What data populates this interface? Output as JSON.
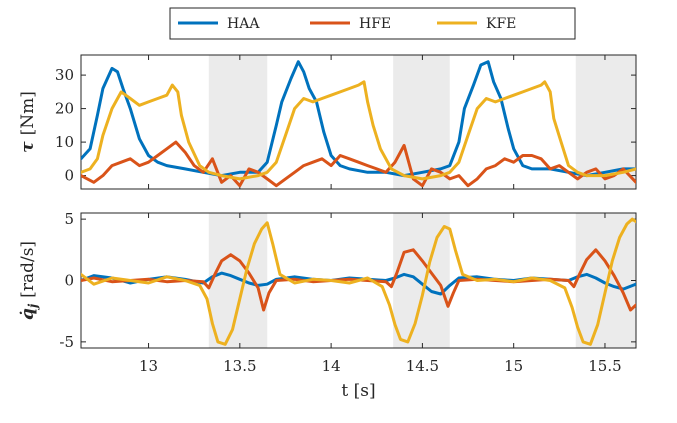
{
  "chart_data": [
    {
      "type": "line",
      "ylabel_symbol": "τ",
      "ylabel_unit": "[Nm]",
      "xlim": [
        12.63,
        15.67
      ],
      "ylim": [
        -4,
        36
      ],
      "yticks": [
        0,
        10,
        20,
        30
      ],
      "shaded_intervals": [
        [
          13.33,
          13.65
        ],
        [
          14.34,
          14.65
        ],
        [
          15.34,
          15.67
        ]
      ],
      "series": [
        {
          "name": "HAA",
          "color": "#0072BD",
          "x": [
            12.63,
            12.68,
            12.72,
            12.75,
            12.8,
            12.83,
            12.86,
            12.9,
            12.95,
            13.0,
            13.05,
            13.1,
            13.2,
            13.3,
            13.4,
            13.5,
            13.6,
            13.65,
            13.7,
            13.73,
            13.78,
            13.82,
            13.85,
            13.88,
            13.92,
            13.96,
            14.0,
            14.05,
            14.1,
            14.2,
            14.3,
            14.4,
            14.5,
            14.6,
            14.65,
            14.7,
            14.73,
            14.78,
            14.82,
            14.86,
            14.89,
            14.93,
            14.97,
            15.0,
            15.05,
            15.1,
            15.2,
            15.3,
            15.4,
            15.5,
            15.6,
            15.67
          ],
          "y": [
            5,
            8,
            18,
            26,
            32,
            31,
            26,
            20,
            11,
            6,
            4,
            3,
            2,
            1,
            0,
            1,
            1,
            4,
            15,
            22,
            29,
            34,
            31,
            26,
            22,
            13,
            6,
            3,
            2,
            1,
            1,
            0,
            1,
            2,
            3,
            10,
            20,
            27,
            33,
            34,
            28,
            23,
            14,
            8,
            3,
            2,
            2,
            1,
            0,
            1,
            2,
            2
          ]
        },
        {
          "name": "HFE",
          "color": "#D95319",
          "x": [
            12.63,
            12.7,
            12.75,
            12.8,
            12.85,
            12.9,
            12.95,
            13.0,
            13.05,
            13.1,
            13.15,
            13.2,
            13.25,
            13.3,
            13.35,
            13.4,
            13.45,
            13.5,
            13.55,
            13.6,
            13.65,
            13.7,
            13.75,
            13.8,
            13.85,
            13.9,
            13.95,
            14.0,
            14.05,
            14.1,
            14.15,
            14.2,
            14.25,
            14.3,
            14.35,
            14.4,
            14.45,
            14.5,
            14.55,
            14.6,
            14.65,
            14.7,
            14.75,
            14.8,
            14.85,
            14.9,
            14.95,
            15.0,
            15.05,
            15.1,
            15.15,
            15.2,
            15.25,
            15.3,
            15.35,
            15.4,
            15.45,
            15.5,
            15.55,
            15.6,
            15.67
          ],
          "y": [
            0,
            -2,
            0,
            3,
            4,
            5,
            3,
            4,
            6,
            8,
            10,
            7,
            3,
            1,
            5,
            -2,
            0,
            -3,
            2,
            1,
            -1,
            -3,
            -1,
            1,
            3,
            4,
            5,
            3,
            6,
            5,
            4,
            3,
            2,
            1,
            4,
            9,
            -1,
            -3,
            2,
            1,
            -1,
            0,
            -3,
            -1,
            2,
            3,
            5,
            4,
            6,
            6,
            5,
            2,
            3,
            1,
            -1,
            1,
            2,
            -1,
            0,
            2,
            -2
          ]
        },
        {
          "name": "KFE",
          "color": "#EDB120",
          "x": [
            12.63,
            12.68,
            12.72,
            12.75,
            12.8,
            12.85,
            12.9,
            12.95,
            13.0,
            13.05,
            13.1,
            13.13,
            13.16,
            13.18,
            13.22,
            13.28,
            13.33,
            13.4,
            13.5,
            13.6,
            13.65,
            13.7,
            13.75,
            13.8,
            13.85,
            13.9,
            13.95,
            14.0,
            14.05,
            14.1,
            14.15,
            14.18,
            14.2,
            14.23,
            14.27,
            14.33,
            14.4,
            14.5,
            14.6,
            14.65,
            14.7,
            14.75,
            14.8,
            14.85,
            14.9,
            14.95,
            15.0,
            15.05,
            15.1,
            15.15,
            15.17,
            15.2,
            15.22,
            15.26,
            15.3,
            15.35,
            15.4,
            15.5,
            15.6,
            15.67
          ],
          "y": [
            1,
            2,
            5,
            12,
            20,
            25,
            23,
            21,
            22,
            23,
            24,
            27,
            25,
            18,
            10,
            3,
            1,
            0,
            -1,
            0,
            1,
            4,
            12,
            20,
            23,
            22,
            23,
            24,
            25,
            26,
            27,
            28,
            22,
            15,
            8,
            2,
            0,
            -1,
            0,
            1,
            4,
            12,
            20,
            23,
            22,
            23,
            24,
            25,
            26,
            27,
            28,
            25,
            17,
            10,
            3,
            1,
            0,
            0,
            1,
            2
          ]
        }
      ]
    },
    {
      "type": "line",
      "ylabel_symbol": "q̇",
      "ylabel_subscript": "j",
      "ylabel_unit": "[rad/s]",
      "xlim": [
        12.63,
        15.67
      ],
      "ylim": [
        -5.5,
        5.5
      ],
      "yticks": [
        -5,
        0,
        5
      ],
      "xticks": [
        13,
        13.5,
        14,
        14.5,
        15,
        15.5
      ],
      "xlabel": "t [s]",
      "shaded_intervals": [
        [
          13.33,
          13.65
        ],
        [
          14.34,
          14.65
        ],
        [
          15.34,
          15.67
        ]
      ],
      "series": [
        {
          "name": "HAA",
          "color": "#0072BD",
          "x": [
            12.63,
            12.7,
            12.8,
            12.9,
            13.0,
            13.1,
            13.2,
            13.3,
            13.35,
            13.4,
            13.45,
            13.5,
            13.55,
            13.6,
            13.65,
            13.7,
            13.8,
            13.9,
            14.0,
            14.1,
            14.2,
            14.3,
            14.35,
            14.4,
            14.45,
            14.5,
            14.55,
            14.6,
            14.65,
            14.7,
            14.8,
            14.9,
            15.0,
            15.1,
            15.2,
            15.3,
            15.35,
            15.4,
            15.45,
            15.5,
            15.55,
            15.6,
            15.67
          ],
          "y": [
            0,
            0.4,
            0.2,
            -0.2,
            0.1,
            0.3,
            0.1,
            -0.2,
            0.3,
            0.6,
            0.4,
            0.1,
            -0.2,
            -0.4,
            -0.3,
            0.1,
            0.3,
            0.1,
            0,
            0.2,
            0.1,
            0,
            0.2,
            0.5,
            0.3,
            -0.3,
            -0.9,
            -1.1,
            -0.4,
            0.2,
            0.3,
            0.1,
            0,
            0.2,
            0.1,
            0,
            0.3,
            0.5,
            0.2,
            -0.2,
            -0.5,
            -0.7,
            -0.3
          ]
        },
        {
          "name": "HFE",
          "color": "#D95319",
          "x": [
            12.63,
            12.7,
            12.8,
            12.9,
            13.0,
            13.1,
            13.2,
            13.3,
            13.33,
            13.36,
            13.4,
            13.45,
            13.5,
            13.55,
            13.6,
            13.63,
            13.66,
            13.7,
            13.8,
            13.9,
            14.0,
            14.1,
            14.2,
            14.3,
            14.33,
            14.36,
            14.4,
            14.45,
            14.5,
            14.55,
            14.6,
            14.64,
            14.67,
            14.7,
            14.8,
            14.9,
            15.0,
            15.1,
            15.2,
            15.3,
            15.33,
            15.36,
            15.4,
            15.45,
            15.5,
            15.55,
            15.6,
            15.64,
            15.67
          ],
          "y": [
            0,
            0.2,
            -0.1,
            0,
            0.1,
            -0.1,
            0,
            -0.1,
            -0.6,
            0.4,
            1.6,
            2.1,
            1.6,
            0.6,
            -0.6,
            -2.4,
            -1.0,
            0,
            0.1,
            -0.1,
            0,
            0.1,
            0,
            -0.1,
            -0.5,
            0.6,
            2.3,
            2.5,
            1.6,
            0.6,
            -0.4,
            -2.1,
            -1.0,
            0,
            0.1,
            0,
            -0.1,
            0,
            0.1,
            0,
            -0.5,
            0.5,
            1.7,
            2.5,
            1.6,
            0.4,
            -1.0,
            -2.4,
            -2.0
          ]
        },
        {
          "name": "KFE",
          "color": "#EDB120",
          "x": [
            12.63,
            12.7,
            12.8,
            12.9,
            13.0,
            13.1,
            13.2,
            13.28,
            13.32,
            13.35,
            13.38,
            13.42,
            13.46,
            13.5,
            13.54,
            13.58,
            13.62,
            13.65,
            13.68,
            13.72,
            13.8,
            13.9,
            14.0,
            14.1,
            14.2,
            14.28,
            14.32,
            14.35,
            14.38,
            14.42,
            14.46,
            14.5,
            14.54,
            14.58,
            14.62,
            14.65,
            14.68,
            14.72,
            14.8,
            14.9,
            15.0,
            15.1,
            15.2,
            15.28,
            15.32,
            15.35,
            15.38,
            15.42,
            15.46,
            15.5,
            15.54,
            15.58,
            15.62,
            15.65,
            15.67
          ],
          "y": [
            0.5,
            -0.3,
            0.2,
            0,
            -0.2,
            0.3,
            0,
            -0.4,
            -1.5,
            -3.5,
            -5.0,
            -5.2,
            -4.0,
            -1.5,
            1.0,
            3.0,
            4.2,
            4.7,
            3.0,
            0.5,
            -0.2,
            0.1,
            0,
            -0.2,
            0.2,
            -0.5,
            -2.0,
            -3.6,
            -4.8,
            -5.0,
            -3.5,
            -1.2,
            1.5,
            3.5,
            4.4,
            4.2,
            2.5,
            0.5,
            0,
            0.1,
            -0.1,
            0.2,
            0,
            -0.6,
            -2.2,
            -3.8,
            -5.0,
            -5.2,
            -3.6,
            -1.0,
            1.6,
            3.5,
            4.6,
            5.0,
            4.8
          ]
        }
      ]
    }
  ]
}
